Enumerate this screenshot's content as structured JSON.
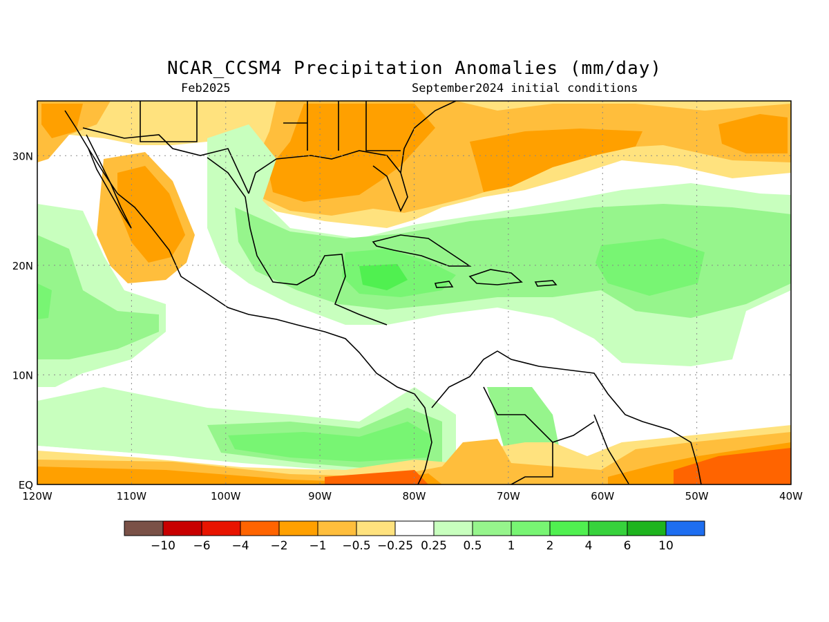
{
  "header": {
    "title": "NCAR_CCSM4 Precipitation Anomalies (mm/day)",
    "lead_month": "Feb2025",
    "init_conditions": "September2024 initial conditions"
  },
  "map": {
    "lon_range": [
      -120,
      -40
    ],
    "lat_range": [
      0,
      35
    ],
    "lat_ticks": [
      {
        "value": 30,
        "label": "30N"
      },
      {
        "value": 20,
        "label": "20N"
      },
      {
        "value": 10,
        "label": "10N"
      },
      {
        "value": 0,
        "label": "EQ"
      }
    ],
    "lon_ticks": [
      {
        "value": -120,
        "label": "120W"
      },
      {
        "value": -110,
        "label": "110W"
      },
      {
        "value": -100,
        "label": "100W"
      },
      {
        "value": -90,
        "label": "90W"
      },
      {
        "value": -80,
        "label": "80W"
      },
      {
        "value": -70,
        "label": "70W"
      },
      {
        "value": -60,
        "label": "60W"
      },
      {
        "value": -50,
        "label": "50W"
      },
      {
        "value": -40,
        "label": "40W"
      }
    ],
    "grid": "dotted"
  },
  "colorbar": {
    "colors": [
      "#7a5147",
      "#c80000",
      "#e81400",
      "#ff6400",
      "#ffa000",
      "#ffbe3c",
      "#ffe27e",
      "#ffffff",
      "#c8ffbe",
      "#96f58c",
      "#78f573",
      "#50f050",
      "#37d23c",
      "#1eb41e",
      "#1e6ef0"
    ],
    "labels": [
      "−10",
      "−6",
      "−4",
      "−2",
      "−1",
      "−0.5",
      "−0.25",
      "0.25",
      "0.5",
      "1",
      "2",
      "4",
      "6",
      "10"
    ]
  }
}
